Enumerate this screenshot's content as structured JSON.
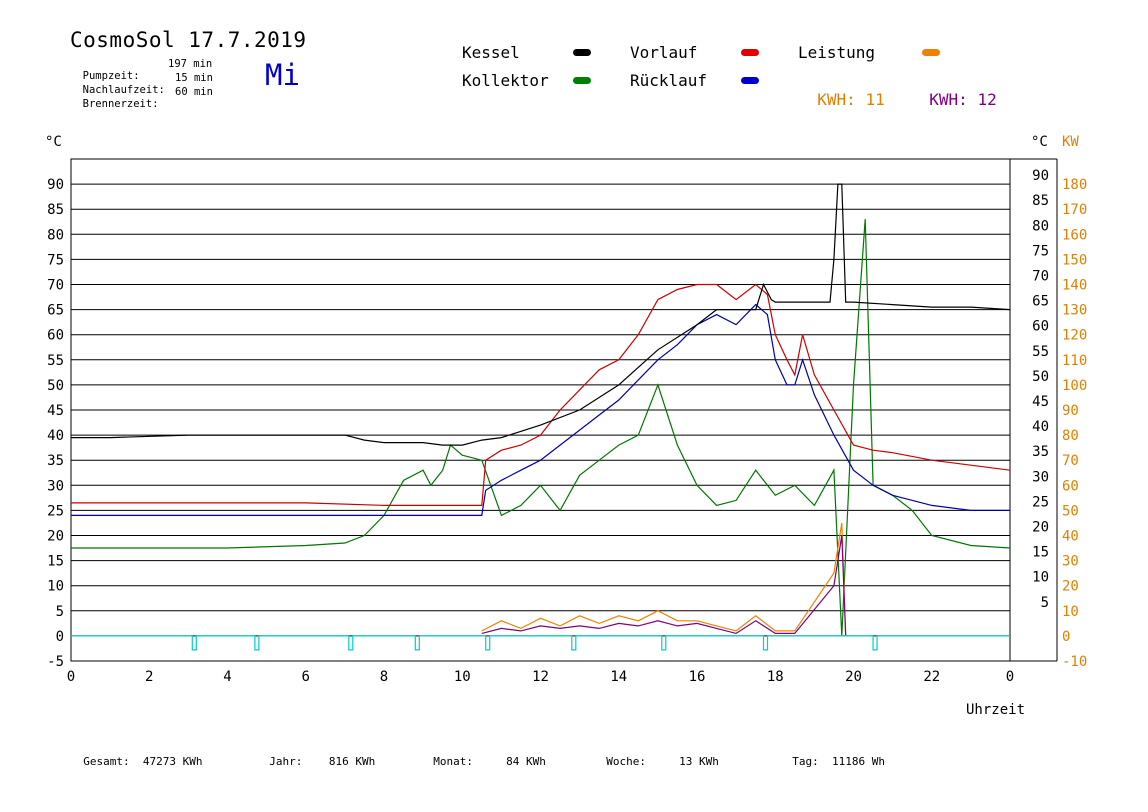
{
  "header": {
    "title": "CosmoSol 17.7.2019",
    "weekday": "Mi",
    "stats": [
      {
        "label": "Pumpzeit:",
        "value": "197 min"
      },
      {
        "label": "Nachlaufzeit:",
        "value": "15 min"
      },
      {
        "label": "Brennerzeit:",
        "value": "60 min"
      }
    ]
  },
  "legend": {
    "kessel": {
      "label": "Kessel",
      "color": "#000000"
    },
    "vorlauf": {
      "label": "Vorlauf",
      "color": "#e00000"
    },
    "leistung": {
      "label": "Leistung",
      "color": "#f08000"
    },
    "kollektor": {
      "label": "Kollektor",
      "color": "#008000"
    },
    "ruecklauf": {
      "label": "Rücklauf",
      "color": "#0000cc"
    },
    "kwh1": {
      "label": "KWH:",
      "value": "11",
      "color": "#e08000"
    },
    "kwh2": {
      "label": "KWH:",
      "value": "12",
      "color": "#800080"
    }
  },
  "footer": {
    "gesamt": {
      "label": "Gesamt:",
      "value": "47273 KWh"
    },
    "jahr": {
      "label": "Jahr:",
      "value": "816 KWh"
    },
    "monat": {
      "label": "Monat:",
      "value": "84 KWh"
    },
    "woche": {
      "label": "Woche:",
      "value": "13 KWh"
    },
    "tag": {
      "label": "Tag:",
      "value": "11186 Wh"
    }
  },
  "chart_data": {
    "type": "line",
    "xlabel": "Uhrzeit",
    "ylabel_left": "°C",
    "ylabel_right_1": "°C",
    "ylabel_right_2": "KW",
    "xlim": [
      0,
      24
    ],
    "ylim": [
      -5,
      95
    ],
    "y_right2_lim": [
      -10,
      190
    ],
    "x_ticks": [
      "0",
      "2",
      "4",
      "6",
      "8",
      "10",
      "12",
      "14",
      "16",
      "18",
      "20",
      "22",
      "0"
    ],
    "y_ticks_left": [
      "-5",
      "0",
      "5",
      "10",
      "15",
      "20",
      "25",
      "30",
      "35",
      "40",
      "45",
      "50",
      "55",
      "60",
      "65",
      "70",
      "75",
      "80",
      "85",
      "90"
    ],
    "y_ticks_right": [
      "5",
      "10",
      "15",
      "20",
      "25",
      "30",
      "35",
      "40",
      "45",
      "50",
      "55",
      "60",
      "65",
      "70",
      "75",
      "80",
      "85",
      "90"
    ],
    "y_ticks_right2": [
      "-10",
      "0",
      "10",
      "20",
      "30",
      "40",
      "50",
      "60",
      "70",
      "80",
      "90",
      "100",
      "110",
      "120",
      "130",
      "140",
      "150",
      "160",
      "170",
      "180"
    ],
    "grid": "horizontal",
    "colors": {
      "kessel": "#000000",
      "vorlauf": "#cc0000",
      "kollektor": "#007700",
      "ruecklauf": "#0000aa",
      "leistung": "#f08000",
      "kwh": "#800080",
      "pumpe": "#00cccc"
    },
    "series": [
      {
        "name": "Kessel",
        "x": [
          0,
          1,
          3,
          5,
          7,
          7.5,
          8,
          9,
          9.5,
          10,
          10.5,
          11,
          12,
          13,
          14,
          15,
          16,
          16.5,
          17,
          17.5,
          17.7,
          17.9,
          18,
          19,
          19.4,
          19.5,
          19.6,
          19.7,
          19.8,
          20,
          21,
          22,
          23,
          24
        ],
        "y": [
          39.5,
          39.5,
          40,
          40,
          40,
          39,
          38.5,
          38.5,
          38,
          38,
          39,
          39.5,
          42,
          45,
          50,
          57,
          62,
          65,
          65,
          65,
          70,
          67,
          66.5,
          66.5,
          66.5,
          75,
          90,
          90,
          66.5,
          66.5,
          66,
          65.5,
          65.5,
          65
        ]
      },
      {
        "name": "Vorlauf",
        "x": [
          0,
          2,
          4,
          6,
          8,
          10,
          10.5,
          10.6,
          11,
          11.5,
          12,
          12.5,
          13,
          13.5,
          14,
          14.5,
          15,
          15.5,
          16,
          16.5,
          17,
          17.5,
          17.8,
          18,
          18.3,
          18.5,
          18.7,
          19,
          19.5,
          20,
          20.5,
          21,
          22,
          23,
          24
        ],
        "y": [
          26.5,
          26.5,
          26.5,
          26.5,
          26,
          26,
          26,
          35,
          37,
          38,
          40,
          45,
          49,
          53,
          55,
          60,
          67,
          69,
          70,
          70,
          67,
          70,
          68,
          60,
          55,
          52,
          60,
          52,
          45,
          38,
          37,
          36.5,
          35,
          34,
          33
        ]
      },
      {
        "name": "Rücklauf",
        "x": [
          0,
          2,
          4,
          6,
          8,
          10,
          10.5,
          10.6,
          11,
          11.5,
          12,
          12.5,
          13,
          13.5,
          14,
          14.5,
          15,
          15.5,
          16,
          16.5,
          17,
          17.5,
          17.8,
          18,
          18.3,
          18.5,
          18.7,
          19,
          19.5,
          20,
          20.5,
          21,
          22,
          23,
          24
        ],
        "y": [
          24,
          24,
          24,
          24,
          24,
          24,
          24,
          29,
          31,
          33,
          35,
          38,
          41,
          44,
          47,
          51,
          55,
          58,
          62,
          64,
          62,
          66,
          64,
          55,
          50,
          50,
          55,
          48,
          40,
          33,
          30,
          28,
          26,
          25,
          25
        ]
      },
      {
        "name": "Kollektor",
        "x": [
          0,
          2,
          4,
          6,
          7,
          7.5,
          8,
          8.5,
          9,
          9.2,
          9.5,
          9.7,
          10,
          10.5,
          11,
          11.5,
          12,
          12.5,
          13,
          13.5,
          14,
          14.5,
          15,
          15.5,
          16,
          16.5,
          17,
          17.5,
          18,
          18.5,
          19,
          19.5,
          19.7,
          20,
          20.3,
          20.5,
          21,
          21.5,
          22,
          23,
          24
        ],
        "y": [
          17.5,
          17.5,
          17.5,
          18,
          18.5,
          20,
          24,
          31,
          33,
          30,
          33,
          38,
          36,
          35,
          24,
          26,
          30,
          25,
          32,
          35,
          38,
          40,
          50,
          38,
          30,
          26,
          27,
          33,
          28,
          30,
          26,
          33,
          0,
          50,
          83,
          30,
          28,
          25,
          20,
          18,
          17.5
        ]
      },
      {
        "name": "Leistung",
        "x": [
          10.5,
          11,
          11.5,
          12,
          12.5,
          13,
          13.5,
          14,
          14.5,
          15,
          15.5,
          16,
          16.5,
          17,
          17.5,
          18,
          18.5,
          19.5,
          19.7,
          19.8
        ],
        "y": [
          2,
          6,
          3,
          7,
          4,
          8,
          5,
          8,
          6,
          10,
          6,
          6,
          4,
          2,
          8,
          2,
          2,
          25,
          45,
          0
        ]
      },
      {
        "name": "KWH",
        "x": [
          10.5,
          11,
          11.5,
          12,
          12.5,
          13,
          13.5,
          14,
          14.5,
          15,
          15.5,
          16,
          16.5,
          17,
          17.5,
          18,
          18.5,
          19.5,
          19.7,
          19.8
        ],
        "y": [
          1,
          3,
          2,
          4,
          3,
          4,
          3,
          5,
          4,
          6,
          4,
          5,
          3,
          1,
          6,
          1,
          1,
          20,
          40,
          0
        ]
      }
    ],
    "pump_pulses": [
      3.1,
      4.7,
      7.1,
      8.8,
      10.6,
      12.8,
      15.1,
      17.7,
      20.5
    ]
  }
}
